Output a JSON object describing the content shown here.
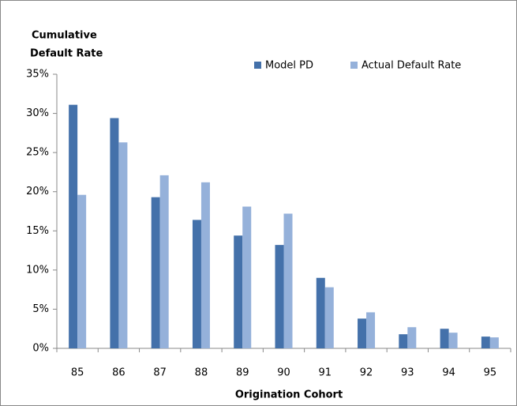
{
  "chart_data": {
    "type": "bar",
    "ylabel": [
      "Cumulative",
      "Default Rate"
    ],
    "xlabel": "Origination Cohort",
    "categories": [
      "85",
      "86",
      "87",
      "88",
      "89",
      "90",
      "91",
      "92",
      "93",
      "94",
      "95"
    ],
    "series": [
      {
        "name": "Model PD",
        "color": "#4471aa",
        "values": [
          31.1,
          29.4,
          19.3,
          16.4,
          14.4,
          13.2,
          9.0,
          3.8,
          1.8,
          2.5,
          1.5
        ]
      },
      {
        "name": "Actual Default Rate",
        "color": "#95b1da",
        "values": [
          19.6,
          26.3,
          22.1,
          21.2,
          18.1,
          17.2,
          7.8,
          4.6,
          2.7,
          2.0,
          1.4
        ]
      }
    ],
    "ylim": [
      0,
      35
    ],
    "yticks": [
      {
        "value": 0,
        "label": "0%"
      },
      {
        "value": 5,
        "label": "5%"
      },
      {
        "value": 10,
        "label": "10%"
      },
      {
        "value": 15,
        "label": "15%"
      },
      {
        "value": 20,
        "label": "20%"
      },
      {
        "value": 25,
        "label": "25%"
      },
      {
        "value": 30,
        "label": "30%"
      },
      {
        "value": 35,
        "label": "35%"
      }
    ],
    "grid": false,
    "legend": "top"
  }
}
